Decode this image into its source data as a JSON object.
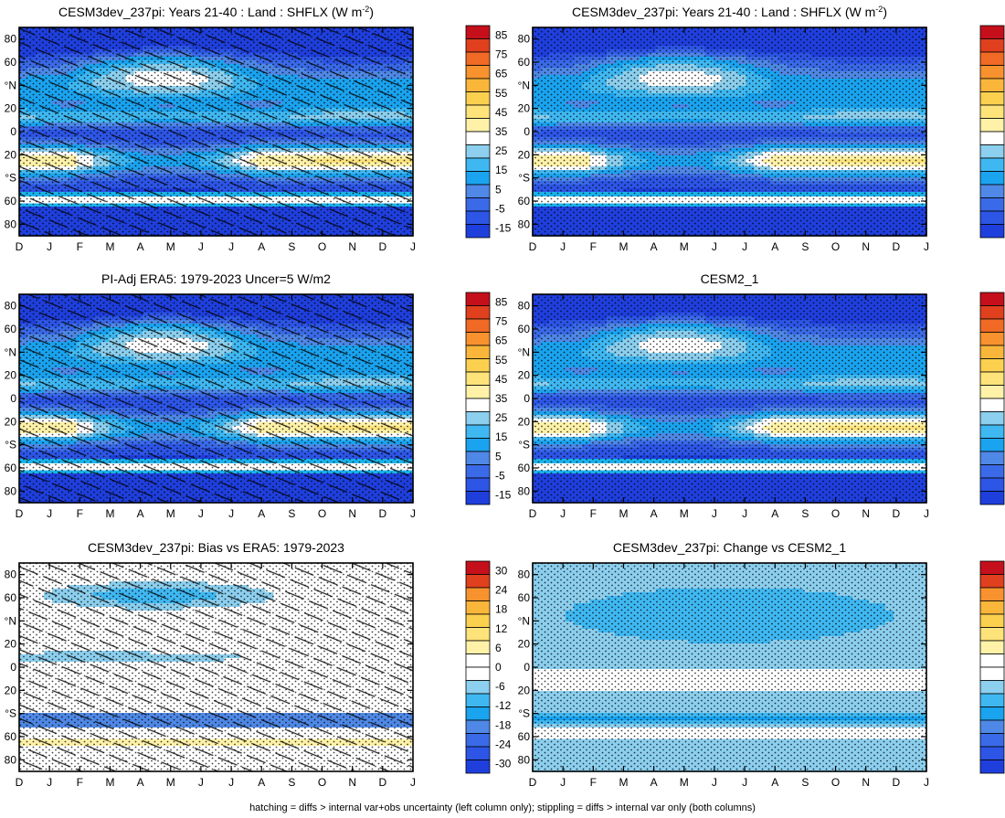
{
  "footer": "hatching = diffs > internal var+obs uncertainty (left column only); stippling = diffs > internal var only (both columns)",
  "months": [
    "D",
    "J",
    "F",
    "M",
    "A",
    "M",
    "J",
    "J",
    "A",
    "S",
    "O",
    "N",
    "D",
    "J"
  ],
  "lat_ticks": [
    "80",
    "60",
    "°N",
    "20",
    "0",
    "20",
    "°S",
    "60",
    "80"
  ],
  "lat_values": [
    80,
    60,
    40,
    20,
    0,
    -20,
    -40,
    -60,
    -80
  ],
  "colors": {
    "abs": [
      "#1f3fdd",
      "#2d55e6",
      "#3a6ae8",
      "#4f88e6",
      "#1aa3ef",
      "#3fb8f2",
      "#8ccfee",
      "#ffffff",
      "#fff2a8",
      "#fde37a",
      "#fbd04f",
      "#f9b63a",
      "#f7922e",
      "#f06a25",
      "#e0401e",
      "#c5101c"
    ],
    "diff": [
      "#1f3fdd",
      "#2d55e6",
      "#3a6ae8",
      "#4f88e6",
      "#1aa3ef",
      "#3fb8f2",
      "#8ccfee",
      "#ffffff",
      "#ffffff",
      "#fff2a8",
      "#fde37a",
      "#fbd04f",
      "#f9b63a",
      "#f7922e",
      "#e0401e",
      "#c5101c"
    ]
  },
  "colorbars": {
    "abs": [
      "85",
      "75",
      "65",
      "55",
      "45",
      "35",
      "25",
      "15",
      "5",
      "-5",
      "-15"
    ],
    "diff": [
      "30",
      "24",
      "18",
      "12",
      "6",
      "0",
      "-6",
      "-12",
      "-18",
      "-24",
      "-30"
    ]
  },
  "chart_data": [
    {
      "type": "heatmap",
      "id": "p1",
      "title_main": "CESM3dev_237pi: Years 21-40 : Land : SHFLX (W m",
      "title_sup": "-2",
      "title_end": ")",
      "scale": "abs",
      "hatch": true,
      "stipple": true
    },
    {
      "type": "heatmap",
      "id": "p2",
      "title_main": "CESM3dev_237pi: Years 21-40 : Land : SHFLX (W m",
      "title_sup": "-2",
      "title_end": ")",
      "scale": "abs",
      "hatch": false,
      "stipple": true
    },
    {
      "type": "heatmap",
      "id": "p3",
      "title_main": "PI-Adj ERA5: 1979-2023 Uncer=5 W/m2",
      "title_sup": "",
      "title_end": "",
      "scale": "abs",
      "hatch": true,
      "stipple": true
    },
    {
      "type": "heatmap",
      "id": "p4",
      "title_main": "CESM2_1",
      "title_sup": "",
      "title_end": "",
      "scale": "abs",
      "hatch": false,
      "stipple": true
    },
    {
      "type": "heatmap",
      "id": "p5",
      "title_main": "CESM3dev_237pi: Bias vs ERA5: 1979-2023",
      "title_sup": "",
      "title_end": "",
      "scale": "diff",
      "hatch": true,
      "stipple": true
    },
    {
      "type": "heatmap",
      "id": "p6",
      "title_main": "CESM3dev_237pi: Change vs CESM2_1",
      "title_sup": "",
      "title_end": "",
      "scale": "diff",
      "hatch": false,
      "stipple": true
    }
  ]
}
